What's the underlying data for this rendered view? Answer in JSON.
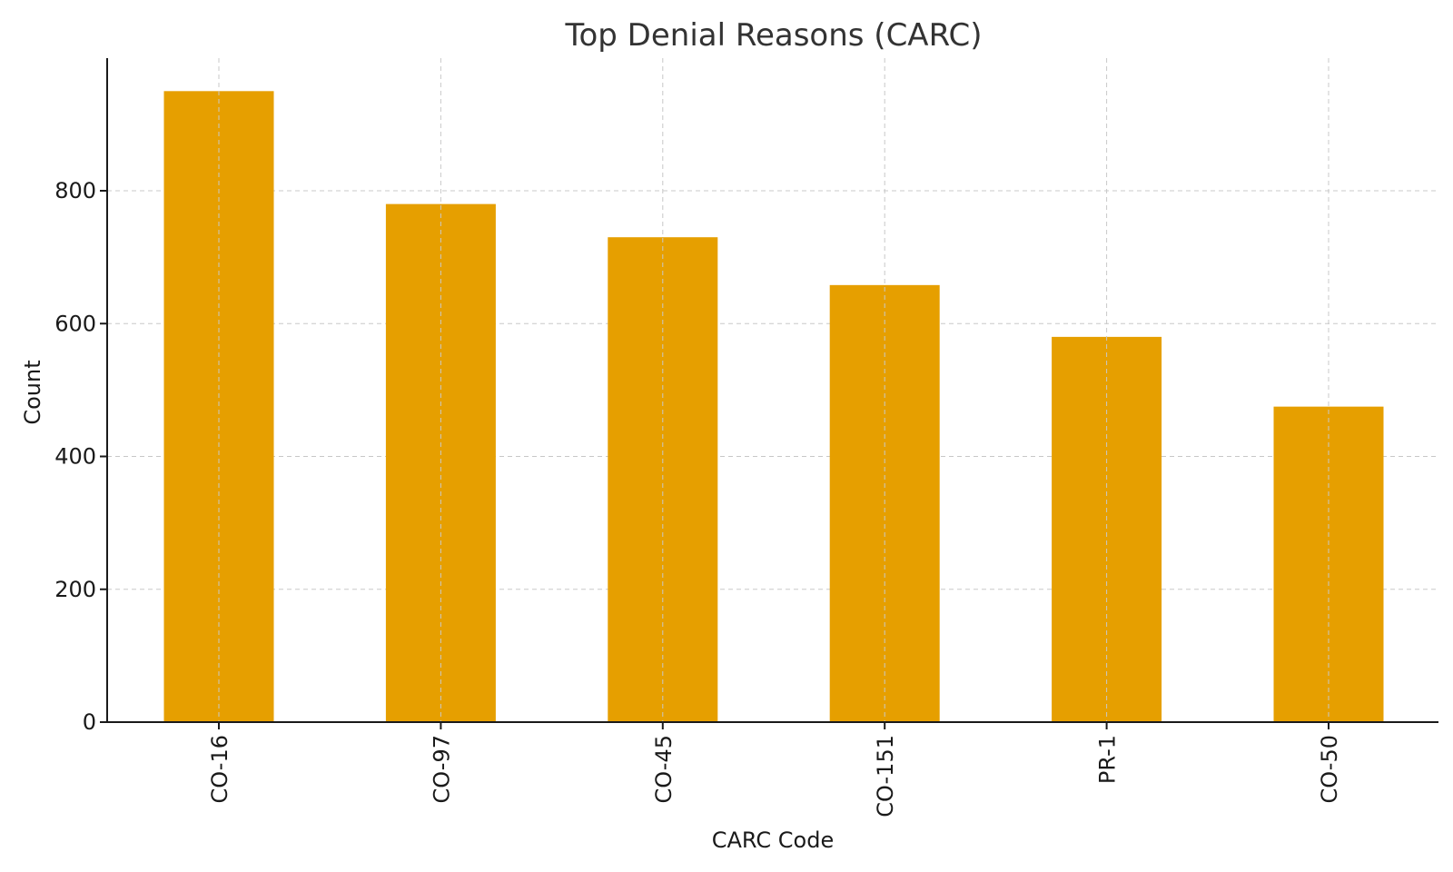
{
  "chart_data": {
    "type": "bar",
    "title": "Top Denial Reasons (CARC)",
    "xlabel": "CARC Code",
    "ylabel": "Count",
    "categories": [
      "CO-16",
      "CO-97",
      "CO-45",
      "CO-151",
      "PR-1",
      "CO-50"
    ],
    "values": [
      950,
      780,
      730,
      658,
      580,
      475
    ],
    "ylim": [
      0,
      1000
    ],
    "yticks": [
      0,
      200,
      400,
      600,
      800
    ],
    "grid": true,
    "bar_color": "#E69F00"
  }
}
